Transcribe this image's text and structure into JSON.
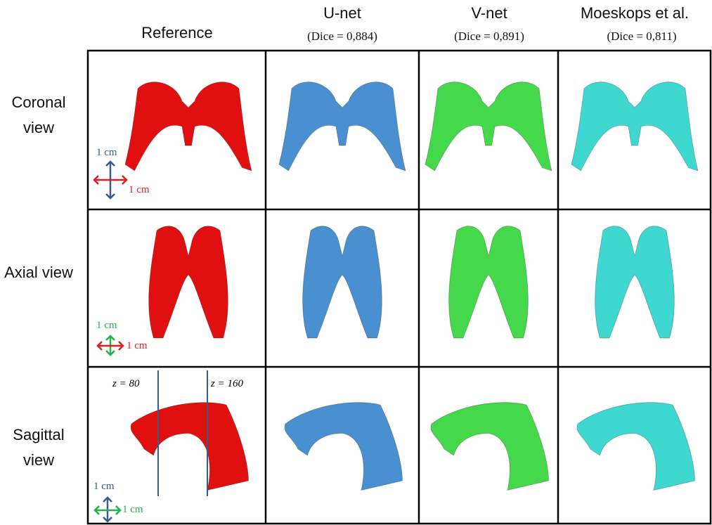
{
  "column_headers": [
    {
      "title": "Reference"
    },
    {
      "title": "U-net",
      "subtitle": "(Dice = 0,884)"
    },
    {
      "title": "V-net",
      "subtitle": "(Dice = 0,891)"
    },
    {
      "title": "Moeskops et al.",
      "subtitle": "(Dice = 0,811)"
    }
  ],
  "row_labels": [
    "Coronal view",
    "Axial view",
    "Sagittal view"
  ],
  "scale_labels": [
    "1 cm",
    "1 cm",
    "1 cm",
    "1 cm",
    "1 cm",
    "1 cm"
  ],
  "slice_labels": [
    "z = 80",
    "z = 160"
  ]
}
